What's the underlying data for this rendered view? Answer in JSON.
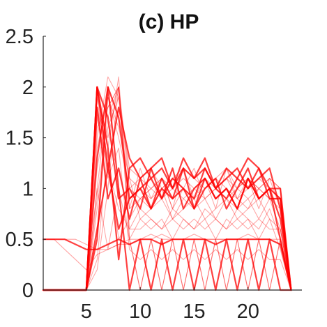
{
  "chart_data": {
    "type": "line",
    "title": "(c) HP",
    "xlabel": "",
    "ylabel": "",
    "xlim": [
      1,
      25
    ],
    "ylim": [
      0,
      2.5
    ],
    "xticks": [
      5,
      10,
      15,
      20
    ],
    "yticks": [
      0,
      0.5,
      1,
      1.5,
      2,
      2.5
    ],
    "xtick_labels": [
      "5",
      "10",
      "15",
      "20"
    ],
    "ytick_labels": [
      "0",
      "0.5",
      "1",
      "1.5",
      "2",
      "2.5"
    ],
    "grid": false,
    "line_color": "#ff0000",
    "x": [
      1,
      2,
      3,
      4,
      5,
      6,
      7,
      8,
      9,
      10,
      11,
      12,
      13,
      14,
      15,
      16,
      17,
      18,
      19,
      20,
      21,
      22,
      23,
      24
    ],
    "series": [
      {
        "values": [
          0,
          0,
          0,
          0,
          0,
          2.0,
          1.2,
          0.6,
          0.9,
          1.0,
          1.1,
          0.9,
          1.2,
          0.8,
          1.0,
          1.1,
          0.9,
          1.0,
          0.8,
          1.1,
          0.9,
          1.0,
          0.5,
          0
        ]
      },
      {
        "values": [
          0,
          0,
          0,
          0,
          0,
          1.6,
          1.8,
          2.0,
          0.8,
          0.9,
          1.0,
          1.1,
          0.8,
          1.0,
          1.2,
          0.9,
          1.0,
          1.1,
          0.9,
          0.8,
          1.0,
          0.9,
          0.8,
          0
        ]
      },
      {
        "values": [
          0,
          0,
          0,
          0,
          0,
          1.9,
          1.5,
          2.0,
          0.5,
          0,
          0.5,
          0,
          0.5,
          0,
          0.5,
          0,
          0.5,
          0,
          0.5,
          0,
          0.5,
          0,
          0.5,
          0
        ]
      },
      {
        "values": [
          0,
          0,
          0,
          0,
          0,
          0.5,
          2.0,
          1.0,
          0,
          0.5,
          0,
          0.5,
          0,
          0.5,
          0,
          0.5,
          0,
          0.5,
          0,
          0.5,
          0,
          0.5,
          0,
          0
        ]
      },
      {
        "values": [
          0,
          0,
          0,
          0,
          0,
          1.2,
          1.8,
          2.0,
          1.0,
          0.9,
          1.0,
          0.9,
          1.0,
          0.9,
          1.0,
          0.9,
          1.0,
          0.9,
          1.0,
          0.9,
          1.0,
          0.9,
          0.9,
          0
        ]
      },
      {
        "values": [
          0,
          0,
          0,
          0,
          0,
          1.0,
          1.9,
          1.6,
          1.1,
          0.7,
          0.8,
          1.0,
          0.7,
          0.8,
          0.9,
          0.7,
          0.8,
          0.9,
          0.7,
          0.8,
          0.9,
          0.7,
          0.6,
          0
        ]
      },
      {
        "values": [
          0,
          0,
          0,
          0,
          0,
          1.8,
          0.9,
          1.2,
          0.7,
          1.1,
          0.8,
          1.0,
          0.9,
          1.2,
          0.8,
          1.0,
          1.1,
          0.8,
          1.0,
          1.2,
          0.9,
          1.0,
          1.0,
          0
        ]
      },
      {
        "values": [
          0,
          0,
          0,
          0,
          0,
          0.3,
          1.4,
          2.1,
          0.6,
          0.6,
          0.7,
          0.6,
          0.7,
          0.6,
          0.7,
          0.6,
          0.7,
          0.6,
          0.7,
          0.6,
          0.7,
          0.6,
          0.6,
          0
        ]
      },
      {
        "values": [
          0.5,
          0.5,
          0.5,
          0.5,
          0.45,
          0.4,
          0.4,
          0.45,
          0.5,
          0.5,
          0.55,
          0.5,
          0.5,
          0.5,
          0.5,
          0.5,
          0.5,
          0.5,
          0.5,
          0.5,
          0.5,
          0.5,
          0.45,
          0
        ]
      },
      {
        "values": [
          0,
          0,
          0,
          0,
          0,
          2.0,
          1.4,
          0.3,
          1.2,
          1.3,
          1.1,
          1.2,
          1.0,
          1.3,
          1.1,
          1.2,
          1.0,
          1.1,
          1.2,
          1.0,
          1.1,
          1.2,
          0.8,
          0
        ]
      },
      {
        "values": [
          0,
          0,
          0,
          0,
          0,
          0.8,
          1.6,
          1.9,
          1.2,
          1.1,
          1.2,
          1.0,
          1.1,
          1.2,
          1.1,
          1.0,
          1.1,
          1.2,
          1.0,
          1.1,
          1.0,
          1.1,
          1.0,
          0
        ]
      },
      {
        "values": [
          0,
          0,
          0,
          0,
          0,
          1.7,
          1.2,
          0.8,
          0.6,
          0.8,
          0.7,
          0.6,
          0.8,
          0.7,
          0.6,
          0.8,
          0.7,
          0.6,
          0.8,
          0.7,
          0.6,
          0.8,
          0.5,
          0
        ]
      },
      {
        "values": [
          0,
          0,
          0,
          0,
          0,
          1.3,
          2.0,
          1.7,
          0.9,
          1.0,
          0.8,
          1.1,
          0.9,
          1.0,
          0.8,
          1.1,
          0.9,
          1.0,
          0.8,
          1.1,
          0.9,
          1.0,
          0.7,
          0
        ]
      },
      {
        "values": [
          0.5,
          0.5,
          0.4,
          0.3,
          0.2,
          0.35,
          0.4,
          0.45,
          0.45,
          0.5,
          0.5,
          0.55,
          0.5,
          0.5,
          0.55,
          0.5,
          0.5,
          0.5,
          0.5,
          0.55,
          0.5,
          0.5,
          0.5,
          0
        ]
      },
      {
        "values": [
          0,
          0,
          0,
          0,
          0,
          1.9,
          1.1,
          1.4,
          0.4,
          0.3,
          0.4,
          0.3,
          0.4,
          0.3,
          0.4,
          0.3,
          0.4,
          0.3,
          0.4,
          0.3,
          0.4,
          0.3,
          0.3,
          0
        ]
      },
      {
        "values": [
          0,
          0,
          0,
          0,
          0,
          0.6,
          1.2,
          1.8,
          1.3,
          1.1,
          1.2,
          1.3,
          1.0,
          1.2,
          1.1,
          1.3,
          1.0,
          1.2,
          1.1,
          1.3,
          1.2,
          1.0,
          0.9,
          0
        ]
      },
      {
        "values": [
          0,
          0,
          0,
          0,
          0,
          1.5,
          2.1,
          1.9,
          0.8,
          1.2,
          0.9,
          1.1,
          0.8,
          1.2,
          0.9,
          1.1,
          0.8,
          1.2,
          0.9,
          1.1,
          0.8,
          1.1,
          0.8,
          0
        ]
      },
      {
        "values": [
          0,
          0,
          0,
          0,
          0,
          1.0,
          0.4,
          1.0,
          0.5,
          0.7,
          0.6,
          0.7,
          0.5,
          0.7,
          0.6,
          0.7,
          0.5,
          0.7,
          0.6,
          0.7,
          0.5,
          0.7,
          0.4,
          0
        ]
      },
      {
        "values": [
          0,
          0,
          0,
          0,
          0,
          2.0,
          1.7,
          0.9,
          1.0,
          0.8,
          1.2,
          0.9,
          1.1,
          1.0,
          0.9,
          1.2,
          1.0,
          0.9,
          1.1,
          1.0,
          1.2,
          0.9,
          0.9,
          0
        ]
      },
      {
        "values": [
          0,
          0,
          0,
          0,
          0,
          0.2,
          1.0,
          2.0,
          0.5,
          0,
          0.5,
          0,
          0.5,
          0,
          0.5,
          0,
          0.5,
          0,
          0.5,
          0,
          0.5,
          0,
          0.5,
          0
        ]
      },
      {
        "values": [
          0,
          0,
          0,
          0,
          0,
          1.4,
          1.9,
          1.5,
          1.0,
          1.1,
          1.0,
          1.1,
          1.0,
          1.1,
          1.0,
          1.1,
          1.0,
          1.1,
          1.0,
          1.1,
          1.0,
          1.1,
          1.0,
          0
        ]
      },
      {
        "values": [
          0.5,
          0.5,
          0.5,
          0.45,
          0.4,
          0.4,
          0.45,
          0.5,
          0.45,
          0.5,
          0.5,
          0.45,
          0.5,
          0.5,
          0.5,
          0.5,
          0.45,
          0.5,
          0.5,
          0.5,
          0.5,
          0.5,
          0.45,
          0
        ]
      },
      {
        "values": [
          0,
          0,
          0,
          0,
          0,
          1.8,
          1.3,
          0.5,
          0.7,
          0.9,
          0.8,
          0.9,
          0.7,
          0.9,
          0.8,
          0.9,
          0.7,
          0.9,
          0.8,
          0.9,
          0.7,
          0.9,
          0.6,
          0
        ]
      },
      {
        "values": [
          0,
          0,
          0,
          0,
          0,
          0.9,
          1.7,
          2.0,
          1.1,
          1.0,
          0.9,
          1.0,
          1.1,
          1.0,
          0.9,
          1.0,
          1.1,
          1.0,
          0.9,
          1.0,
          1.1,
          1.0,
          0.9,
          0
        ]
      }
    ]
  }
}
